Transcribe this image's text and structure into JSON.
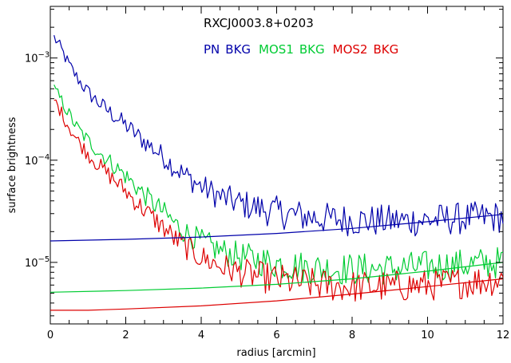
{
  "chart_data": {
    "type": "line",
    "title": "RXCJ0003.8+0203",
    "xlabel": "radius [arcmin]",
    "ylabel": "surface brightness",
    "xlim": [
      0,
      12
    ],
    "ylim": [
      2.5e-06,
      0.0032
    ],
    "yscale": "log",
    "x_ticks": [
      0,
      2,
      4,
      6,
      8,
      10,
      12
    ],
    "y_ticks": [
      {
        "value": 1e-05,
        "base": "10",
        "exp": "−5"
      },
      {
        "value": 0.0001,
        "base": "10",
        "exp": "−4"
      },
      {
        "value": 0.001,
        "base": "10",
        "exp": "−3"
      }
    ],
    "legend_placement": "top-right",
    "series": [
      {
        "name": "PN",
        "role": "profile",
        "color": "#0000aa",
        "legend_suffix": "BKG",
        "x": [
          0.1,
          0.3,
          0.5,
          0.7,
          1.0,
          1.3,
          1.6,
          2.0,
          2.3,
          2.6,
          3.0,
          3.3,
          3.6,
          4.0,
          4.5,
          5.0,
          5.5,
          6.0,
          6.5,
          7.0,
          7.5,
          8.0,
          8.5,
          9.0,
          9.5,
          10.0,
          10.5,
          11.0,
          11.5,
          12.0
        ],
        "y": [
          0.0016,
          0.0012,
          0.00085,
          0.00065,
          0.00046,
          0.00036,
          0.00029,
          0.00022,
          0.000175,
          0.000142,
          0.000108,
          8.5e-05,
          7e-05,
          5.5e-05,
          4.4e-05,
          3.8e-05,
          3.4e-05,
          3.1e-05,
          2.9e-05,
          2.75e-05,
          2.65e-05,
          2.6e-05,
          2.55e-05,
          2.55e-05,
          2.55e-05,
          2.6e-05,
          2.65e-05,
          2.7e-05,
          2.75e-05,
          2.8e-05
        ]
      },
      {
        "name": "MOS1",
        "role": "profile",
        "color": "#00cc33",
        "legend_suffix": "BKG",
        "x": [
          0.1,
          0.3,
          0.5,
          0.7,
          1.0,
          1.3,
          1.6,
          2.0,
          2.3,
          2.6,
          3.0,
          3.3,
          3.6,
          4.0,
          4.5,
          5.0,
          5.5,
          6.0,
          6.5,
          7.0,
          7.5,
          8.0,
          8.5,
          9.0,
          9.5,
          10.0,
          10.5,
          11.0,
          11.5,
          12.0
        ],
        "y": [
          0.0005,
          0.00038,
          0.00028,
          0.00021,
          0.000155,
          0.00012,
          9.5e-05,
          7e-05,
          5.4e-05,
          4.2e-05,
          3.1e-05,
          2.4e-05,
          1.95e-05,
          1.6e-05,
          1.3e-05,
          1.15e-05,
          1.05e-05,
          9.8e-06,
          9.2e-06,
          8.8e-06,
          8.6e-06,
          8.6e-06,
          8.6e-06,
          8.7e-06,
          8.9e-06,
          9.1e-06,
          9.3e-06,
          9.5e-06,
          9.8e-06,
          1e-05
        ]
      },
      {
        "name": "MOS2",
        "role": "profile",
        "color": "#dd0000",
        "legend_suffix": "BKG",
        "x": [
          0.1,
          0.3,
          0.5,
          0.7,
          1.0,
          1.3,
          1.6,
          2.0,
          2.3,
          2.6,
          3.0,
          3.3,
          3.6,
          4.0,
          4.5,
          5.0,
          5.5,
          6.0,
          6.5,
          7.0,
          7.5,
          8.0,
          8.5,
          9.0,
          9.5,
          10.0,
          10.5,
          11.0,
          11.5,
          12.0
        ],
        "y": [
          0.00039,
          0.00029,
          0.00021,
          0.00016,
          0.000115,
          8.8e-05,
          6.9e-05,
          5e-05,
          3.8e-05,
          3e-05,
          2.2e-05,
          1.7e-05,
          1.4e-05,
          1.12e-05,
          9.2e-06,
          8e-06,
          7.3e-06,
          6.8e-06,
          6.4e-06,
          6.1e-06,
          5.9e-06,
          5.8e-06,
          5.8e-06,
          5.8e-06,
          5.9e-06,
          6e-06,
          6.2e-06,
          6.4e-06,
          6.6e-06,
          6.9e-06
        ]
      },
      {
        "name": "PN BKG",
        "role": "background",
        "color": "#0000aa",
        "x": [
          0,
          2,
          4,
          6,
          8,
          10,
          12
        ],
        "y": [
          1.62e-05,
          1.68e-05,
          1.77e-05,
          1.92e-05,
          2.15e-05,
          2.5e-05,
          2.95e-05
        ]
      },
      {
        "name": "MOS1 BKG",
        "role": "background",
        "color": "#00cc33",
        "x": [
          0,
          2,
          4,
          6,
          8,
          10,
          12
        ],
        "y": [
          5.1e-06,
          5.3e-06,
          5.6e-06,
          6.1e-06,
          6.9e-06,
          8.2e-06,
          1e-05
        ]
      },
      {
        "name": "MOS2 BKG",
        "role": "background",
        "color": "#dd0000",
        "x": [
          0,
          1,
          2,
          4,
          6,
          8,
          10,
          12
        ],
        "y": [
          3.4e-06,
          3.4e-06,
          3.5e-06,
          3.75e-06,
          4.2e-06,
          4.9e-06,
          5.8e-06,
          6.9e-06
        ]
      }
    ]
  }
}
